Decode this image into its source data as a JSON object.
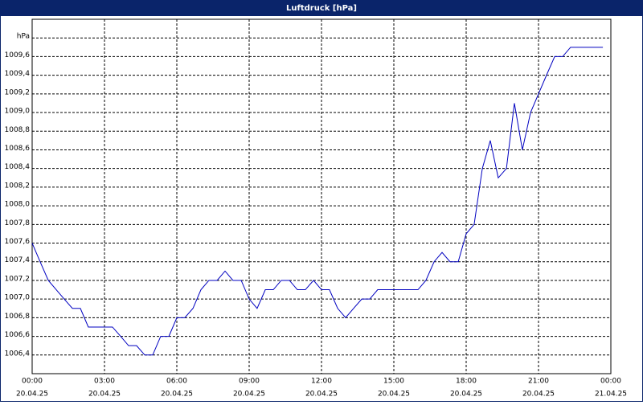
{
  "chart_data": {
    "type": "line",
    "title": "Luftdruck [hPa]",
    "x": [
      0,
      0.33,
      0.67,
      1,
      1.33,
      1.67,
      2,
      2.33,
      2.67,
      3,
      3.33,
      3.67,
      4,
      4.33,
      4.67,
      5,
      5.33,
      5.67,
      6,
      6.33,
      6.67,
      7,
      7.33,
      7.67,
      8,
      8.33,
      8.67,
      9,
      9.33,
      9.67,
      10,
      10.33,
      10.67,
      11,
      11.33,
      11.67,
      12,
      12.33,
      12.67,
      13,
      13.33,
      13.67,
      14,
      14.33,
      14.67,
      15,
      15.33,
      15.67,
      16,
      16.33,
      16.67,
      17,
      17.33,
      17.67,
      18,
      18.33,
      18.67,
      19,
      19.33,
      19.67,
      20,
      20.33,
      20.67,
      21,
      21.33,
      21.67,
      22,
      22.33,
      22.67,
      23,
      23.33,
      23.67
    ],
    "series": [
      {
        "color": "#0000c0",
        "values": [
          1007.6,
          1007.4,
          1007.2,
          1007.1,
          1007.0,
          1006.9,
          1006.9,
          1006.7,
          1006.7,
          1006.7,
          1006.7,
          1006.6,
          1006.5,
          1006.5,
          1006.4,
          1006.4,
          1006.6,
          1006.6,
          1006.8,
          1006.8,
          1006.9,
          1007.1,
          1007.2,
          1007.2,
          1007.3,
          1007.2,
          1007.2,
          1007.0,
          1006.9,
          1007.1,
          1007.1,
          1007.2,
          1007.2,
          1007.1,
          1007.1,
          1007.2,
          1007.1,
          1007.1,
          1006.9,
          1006.8,
          1006.9,
          1007.0,
          1007.0,
          1007.1,
          1007.1,
          1007.1,
          1007.1,
          1007.1,
          1007.1,
          1007.2,
          1007.4,
          1007.5,
          1007.4,
          1007.4,
          1007.7,
          1007.8,
          1008.4,
          1008.7,
          1008.3,
          1008.4,
          1009.1,
          1008.6,
          1009.0,
          1009.2,
          1009.4,
          1009.6,
          1009.6,
          1009.7,
          1009.7,
          1009.7,
          1009.7,
          1009.7
        ]
      }
    ],
    "xlim": [
      0,
      24
    ],
    "xticks": [
      {
        "value": 0,
        "label": "00:00"
      },
      {
        "value": 3,
        "label": "03:00"
      },
      {
        "value": 6,
        "label": "06:00"
      },
      {
        "value": 9,
        "label": "09:00"
      },
      {
        "value": 12,
        "label": "12:00"
      },
      {
        "value": 15,
        "label": "15:00"
      },
      {
        "value": 18,
        "label": "18:00"
      },
      {
        "value": 21,
        "label": "21:00"
      },
      {
        "value": 24,
        "label": "00:00"
      }
    ],
    "xtick_dates": [
      "20.04.25",
      "20.04.25",
      "20.04.25",
      "20.04.25",
      "20.04.25",
      "20.04.25",
      "20.04.25",
      "20.04.25",
      "21.04.25"
    ],
    "ylim": [
      1006.2,
      1010.0
    ],
    "yticks": [
      {
        "value": 1006.4,
        "label": "1006,4"
      },
      {
        "value": 1006.6,
        "label": "1006,6"
      },
      {
        "value": 1006.8,
        "label": "1006,8"
      },
      {
        "value": 1007.0,
        "label": "1007,0"
      },
      {
        "value": 1007.2,
        "label": "1007,2"
      },
      {
        "value": 1007.4,
        "label": "1007,4"
      },
      {
        "value": 1007.6,
        "label": "1007,6"
      },
      {
        "value": 1007.8,
        "label": "1007,8"
      },
      {
        "value": 1008.0,
        "label": "1008,0"
      },
      {
        "value": 1008.2,
        "label": "1008,2"
      },
      {
        "value": 1008.4,
        "label": "1008,4"
      },
      {
        "value": 1008.6,
        "label": "1008,6"
      },
      {
        "value": 1008.8,
        "label": "1008,8"
      },
      {
        "value": 1009.0,
        "label": "1009,0"
      },
      {
        "value": 1009.2,
        "label": "1009,2"
      },
      {
        "value": 1009.4,
        "label": "1009,4"
      },
      {
        "value": 1009.6,
        "label": "1009,6"
      },
      {
        "value": 1009.8,
        "label": "hPa"
      }
    ],
    "grid": true
  }
}
